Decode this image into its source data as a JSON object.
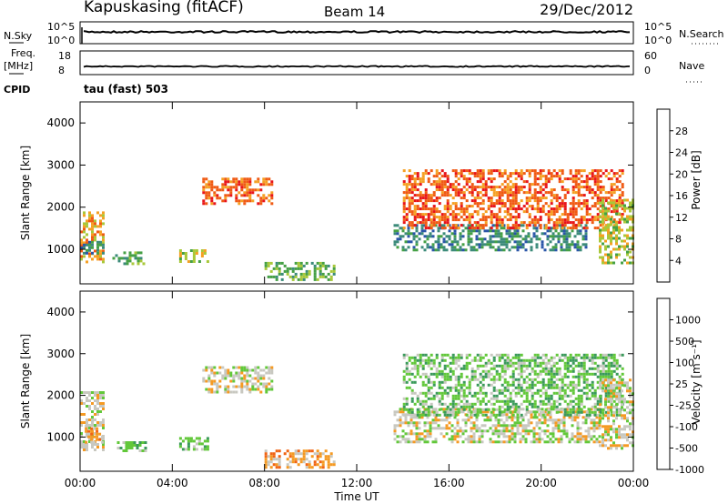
{
  "header": {
    "station": "Kapuskasing (fitACF)",
    "beam": "Beam 14",
    "date": "29/Dec/2012"
  },
  "noise_panel": {
    "left_label": "N.Sky",
    "left_ticks": [
      "10^5",
      "10^0"
    ],
    "right_ticks": [
      "10^5",
      "10^0"
    ],
    "right_label": "N.Search"
  },
  "freq_panel": {
    "left_label_1": "Freq.",
    "left_label_2": "[MHz]",
    "left_ticks": [
      "18",
      "8"
    ],
    "right_ticks": [
      "60",
      "0"
    ],
    "right_label": "Nave"
  },
  "cpid": {
    "label": "CPID",
    "text": "tau (fast) 503"
  },
  "chart_data": [
    {
      "type": "heatmap",
      "name": "power",
      "ylabel": "Slant Range [km]",
      "yticks": [
        "4000",
        "3000",
        "2000",
        "1000"
      ],
      "ylim": [
        180,
        4500
      ],
      "xlim": [
        0,
        24
      ],
      "colorbar": {
        "label": "Power [dB]",
        "labels": [
          "28",
          "24",
          "20",
          "16",
          "12",
          "8",
          "4"
        ],
        "colors": [
          "#e8141a",
          "#f05a14",
          "#f5a023",
          "#a8c83a",
          "#45a045",
          "#3c8b7a",
          "#2a55a8",
          "#1a2ae0"
        ]
      },
      "regions": [
        {
          "t0": 0.0,
          "t1": 1.0,
          "r0": 700,
          "r1": 1900,
          "level": 2
        },
        {
          "t0": 0.0,
          "t1": 1.0,
          "r0": 900,
          "r1": 1200,
          "level": 5
        },
        {
          "t0": 1.4,
          "t1": 2.8,
          "r0": 650,
          "r1": 950,
          "level": 4
        },
        {
          "t0": 4.3,
          "t1": 5.5,
          "r0": 700,
          "r1": 1000,
          "level": 3
        },
        {
          "t0": 5.3,
          "t1": 8.3,
          "r0": 2100,
          "r1": 2700,
          "level": 1
        },
        {
          "t0": 8.0,
          "t1": 11.0,
          "r0": 300,
          "r1": 700,
          "level": 4
        },
        {
          "t0": 13.6,
          "t1": 22.0,
          "r0": 1000,
          "r1": 1600,
          "level": 5
        },
        {
          "t0": 14.0,
          "t1": 23.5,
          "r0": 1500,
          "r1": 2900,
          "level": 1
        },
        {
          "t0": 22.5,
          "t1": 24.0,
          "r0": 700,
          "r1": 2200,
          "level": 3
        }
      ]
    },
    {
      "type": "heatmap",
      "name": "velocity",
      "ylabel": "Slant Range [km]",
      "yticks": [
        "4000",
        "3000",
        "2000",
        "1000"
      ],
      "ylim": [
        180,
        4500
      ],
      "xlim": [
        0,
        24
      ],
      "colorbar": {
        "label": "Velocity [m s⁻¹]",
        "labels": [
          "1000",
          "500",
          "100",
          "25",
          "-25",
          "-100",
          "-500",
          "-1000"
        ],
        "colors": [
          "#2a3fc0",
          "#3a64b4",
          "#3a9a5a",
          "#62c83a",
          "#c8c8c0",
          "#f59a23",
          "#f06414",
          "#e81a14"
        ]
      },
      "regions": [
        {
          "t0": 0.0,
          "t1": 1.0,
          "r0": 700,
          "r1": 2100,
          "level": 4
        },
        {
          "t0": 0.2,
          "t1": 1.0,
          "r0": 900,
          "r1": 1300,
          "level": 5
        },
        {
          "t0": 1.6,
          "t1": 2.8,
          "r0": 650,
          "r1": 900,
          "level": 3
        },
        {
          "t0": 4.3,
          "t1": 5.5,
          "r0": 700,
          "r1": 1000,
          "level": 3
        },
        {
          "t0": 5.3,
          "t1": 8.3,
          "r0": 2100,
          "r1": 2700,
          "level": 4
        },
        {
          "t0": 8.0,
          "t1": 11.0,
          "r0": 300,
          "r1": 700,
          "level": 5
        },
        {
          "t0": 13.6,
          "t1": 22.5,
          "r0": 900,
          "r1": 1700,
          "level": 4
        },
        {
          "t0": 14.0,
          "t1": 23.5,
          "r0": 1500,
          "r1": 3000,
          "level": 3
        },
        {
          "t0": 22.5,
          "t1": 24.0,
          "r0": 700,
          "r1": 2400,
          "level": 4
        }
      ]
    }
  ],
  "xaxis": {
    "ticks": [
      "00:00",
      "04:00",
      "08:00",
      "12:00",
      "16:00",
      "20:00",
      "00:00"
    ],
    "label": "Time UT"
  }
}
